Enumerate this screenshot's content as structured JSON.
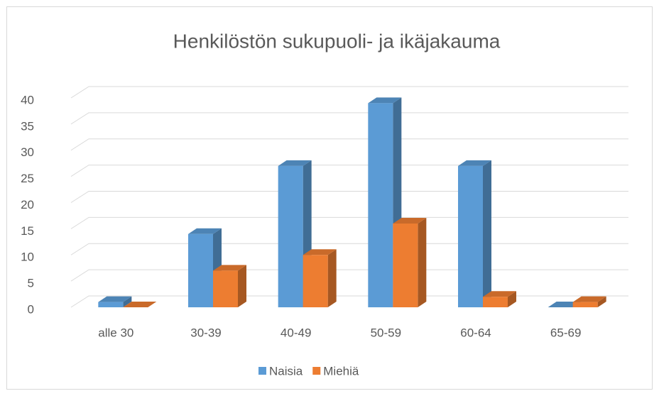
{
  "chart_data": {
    "type": "bar3d",
    "title": "Henkilöstön sukupuoli- ja ikäjakauma",
    "categories": [
      "alle 30",
      "30-39",
      "40-49",
      "50-59",
      "60-64",
      "65-69"
    ],
    "series": [
      {
        "name": "Naisia",
        "color": "#5b9bd5",
        "values": [
          1,
          14,
          27,
          39,
          27,
          0
        ]
      },
      {
        "name": "Miehiä",
        "color": "#ed7d31",
        "values": [
          0,
          7,
          10,
          16,
          2,
          1
        ]
      }
    ],
    "ylim": [
      0,
      40
    ],
    "yticks": [
      0,
      5,
      10,
      15,
      20,
      25,
      30,
      35,
      40
    ],
    "grid": true,
    "legend": "bottom"
  }
}
